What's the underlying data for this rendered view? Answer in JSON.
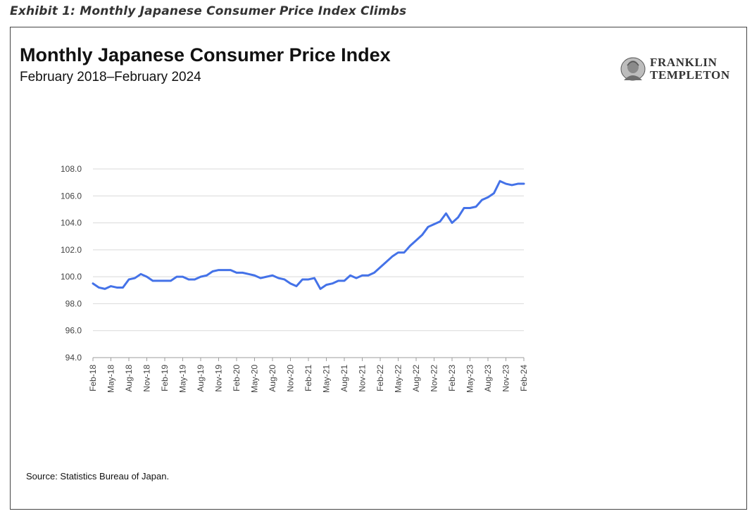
{
  "exhibit_caption": "Exhibit 1: Monthly Japanese Consumer Price Index Climbs",
  "logo": {
    "line1": "FRANKLIN",
    "line2": "TEMPLETON",
    "icon": "franklin-portrait-icon"
  },
  "source": "Source: Statistics Bureau of Japan.",
  "colors": {
    "line": "#4472e8",
    "grid": "#d9d9d9",
    "axis": "#9e9e9e"
  },
  "chart_data": {
    "type": "line",
    "title": "Monthly Japanese Consumer Price Index",
    "subtitle": "February 2018–February 2024",
    "xlabel": "",
    "ylabel": "",
    "ylim": [
      94.0,
      108.0
    ],
    "yticks": [
      "94.0",
      "96.0",
      "98.0",
      "100.0",
      "102.0",
      "104.0",
      "106.0",
      "108.0"
    ],
    "grid": true,
    "legend": "none",
    "xtick_labels": [
      "Feb-18",
      "May-18",
      "Aug-18",
      "Nov-18",
      "Feb-19",
      "May-19",
      "Aug-19",
      "Nov-19",
      "Feb-20",
      "May-20",
      "Aug-20",
      "Nov-20",
      "Feb-21",
      "May-21",
      "Aug-21",
      "Nov-21",
      "Feb-22",
      "May-22",
      "Aug-22",
      "Nov-22",
      "Feb-23",
      "May-23",
      "Aug-23",
      "Nov-23",
      "Feb-24"
    ],
    "x_start": "Feb-18",
    "x_end": "Feb-24",
    "series": [
      {
        "values": [
          99.5,
          99.2,
          99.1,
          99.3,
          99.2,
          99.2,
          99.8,
          99.9,
          100.2,
          100.0,
          99.7,
          99.7,
          99.7,
          99.7,
          100.0,
          100.0,
          99.8,
          99.8,
          100.0,
          100.1,
          100.4,
          100.5,
          100.5,
          100.5,
          100.3,
          100.3,
          100.2,
          100.1,
          99.9,
          100.0,
          100.1,
          99.9,
          99.8,
          99.5,
          99.3,
          99.8,
          99.8,
          99.9,
          99.1,
          99.4,
          99.5,
          99.7,
          99.7,
          100.1,
          99.9,
          100.1,
          100.1,
          100.3,
          100.7,
          101.1,
          101.5,
          101.8,
          101.8,
          102.3,
          102.7,
          103.1,
          103.7,
          103.9,
          104.1,
          104.7,
          104.0,
          104.4,
          105.1,
          105.1,
          105.2,
          105.7,
          105.9,
          106.2,
          107.1,
          106.9,
          106.8,
          106.9,
          106.9
        ]
      }
    ]
  }
}
